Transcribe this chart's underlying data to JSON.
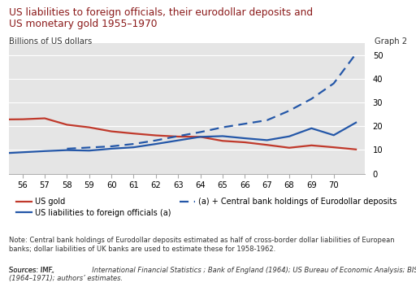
{
  "title_line1": "US liabilities to foreign officials, their eurodollar deposits and",
  "title_line2": "US monetary gold 1955–1970",
  "ylabel": "Billions of US dollars",
  "graph_label": "Graph 2",
  "note": "Note: Central bank holdings of Eurodollar deposits estimated as half of cross-border dollar liabilities of European\nbanks; dollar liabilities of UK banks are used to estimate these for 1958-1962.",
  "sources": "Sources: IMF, International Financial Statistics; Bank of England (1964); US Bureau of Economic Analysis; BIS\n(1964–1971); authors’ estimates.",
  "years": [
    55,
    56,
    57,
    58,
    59,
    60,
    61,
    62,
    63,
    64,
    65,
    66,
    67,
    68,
    69,
    70,
    71
  ],
  "us_gold": [
    22.8,
    22.9,
    23.3,
    20.6,
    19.5,
    17.8,
    16.9,
    16.1,
    15.6,
    15.5,
    13.8,
    13.2,
    12.1,
    10.9,
    11.9,
    11.1,
    10.2
  ],
  "us_liabilities": [
    8.5,
    9.0,
    9.5,
    9.9,
    9.7,
    10.5,
    11.1,
    12.5,
    14.0,
    15.5,
    15.8,
    14.9,
    14.1,
    15.7,
    19.1,
    16.2,
    21.5
  ],
  "eurodollar": [
    null,
    null,
    null,
    10.5,
    11.0,
    11.5,
    12.5,
    14.0,
    15.8,
    17.5,
    19.5,
    21.0,
    22.5,
    26.5,
    31.5,
    38.0,
    50.5
  ],
  "bg_color": "#e5e5e5",
  "red_color": "#c0392b",
  "blue_color": "#2457a8",
  "title_color": "#8b1a1a",
  "ylim": [
    0,
    55
  ],
  "yticks": [
    0,
    10,
    20,
    30,
    40,
    50
  ],
  "xtick_labels": [
    "56",
    "57",
    "58",
    "59",
    "60",
    "61",
    "62",
    "63",
    "64",
    "65",
    "66",
    "67",
    "68",
    "69",
    "70"
  ]
}
